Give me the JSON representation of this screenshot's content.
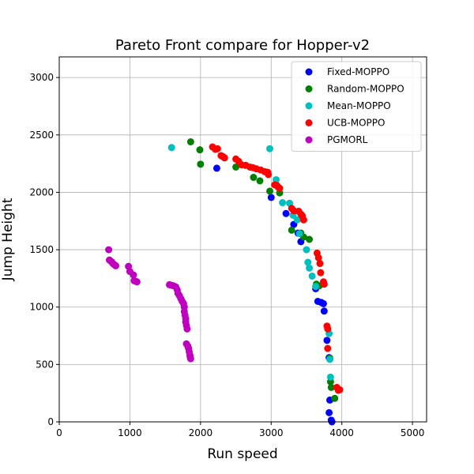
{
  "chart_data": {
    "type": "scatter",
    "title": "Pareto Front compare for Hopper-v2",
    "xlabel": "Run speed",
    "ylabel": "Jump Height",
    "xlim": [
      0,
      5200
    ],
    "ylim": [
      0,
      3180
    ],
    "xticks": [
      0,
      1000,
      2000,
      3000,
      4000,
      5000
    ],
    "yticks": [
      0,
      500,
      1000,
      1500,
      2000,
      2500,
      3000
    ],
    "grid": true,
    "legend_position": "top-right",
    "series": [
      {
        "name": "Fixed-MOPPO",
        "color": "#0000ff",
        "points": [
          [
            2230,
            2210
          ],
          [
            3000,
            1955
          ],
          [
            3210,
            1815
          ],
          [
            3320,
            1720
          ],
          [
            3380,
            1645
          ],
          [
            3420,
            1570
          ],
          [
            3630,
            1160
          ],
          [
            3660,
            1050
          ],
          [
            3710,
            1040
          ],
          [
            3740,
            1030
          ],
          [
            3750,
            965
          ],
          [
            3790,
            710
          ],
          [
            3820,
            560
          ],
          [
            3830,
            190
          ],
          [
            3820,
            80
          ],
          [
            3850,
            15
          ],
          [
            3860,
            0
          ]
        ]
      },
      {
        "name": "Random-MOPPO",
        "color": "#008000",
        "points": [
          [
            1860,
            2440
          ],
          [
            1990,
            2370
          ],
          [
            2000,
            2245
          ],
          [
            2500,
            2220
          ],
          [
            2750,
            2130
          ],
          [
            2840,
            2100
          ],
          [
            2980,
            2010
          ],
          [
            3120,
            1995
          ],
          [
            3290,
            1670
          ],
          [
            3420,
            1645
          ],
          [
            3460,
            1610
          ],
          [
            3540,
            1590
          ],
          [
            3640,
            1200
          ],
          [
            3680,
            1185
          ],
          [
            3830,
            555
          ],
          [
            3840,
            350
          ],
          [
            3850,
            300
          ],
          [
            3900,
            205
          ]
        ]
      },
      {
        "name": "Mean-MOPPO",
        "color": "#00bfbf",
        "points": [
          [
            1590,
            2390
          ],
          [
            2980,
            2380
          ],
          [
            3070,
            2110
          ],
          [
            3160,
            1910
          ],
          [
            3260,
            1905
          ],
          [
            3310,
            1800
          ],
          [
            3370,
            1760
          ],
          [
            3400,
            1640
          ],
          [
            3500,
            1500
          ],
          [
            3520,
            1390
          ],
          [
            3540,
            1340
          ],
          [
            3580,
            1270
          ],
          [
            3630,
            1180
          ],
          [
            3820,
            770
          ],
          [
            3830,
            545
          ],
          [
            3840,
            390
          ]
        ]
      },
      {
        "name": "UCB-MOPPO",
        "color": "#ff0000",
        "points": [
          [
            2170,
            2395
          ],
          [
            2210,
            2375
          ],
          [
            2240,
            2380
          ],
          [
            2290,
            2320
          ],
          [
            2320,
            2310
          ],
          [
            2340,
            2300
          ],
          [
            2500,
            2290
          ],
          [
            2540,
            2270
          ],
          [
            2580,
            2240
          ],
          [
            2640,
            2235
          ],
          [
            2700,
            2220
          ],
          [
            2740,
            2215
          ],
          [
            2790,
            2205
          ],
          [
            2850,
            2195
          ],
          [
            2910,
            2180
          ],
          [
            2950,
            2175
          ],
          [
            2960,
            2155
          ],
          [
            3050,
            2065
          ],
          [
            3080,
            2060
          ],
          [
            3100,
            2045
          ],
          [
            3120,
            2035
          ],
          [
            3290,
            1860
          ],
          [
            3320,
            1840
          ],
          [
            3390,
            1835
          ],
          [
            3420,
            1810
          ],
          [
            3440,
            1795
          ],
          [
            3460,
            1760
          ],
          [
            3650,
            1470
          ],
          [
            3670,
            1430
          ],
          [
            3690,
            1380
          ],
          [
            3700,
            1300
          ],
          [
            3740,
            1220
          ],
          [
            3750,
            1200
          ],
          [
            3790,
            835
          ],
          [
            3800,
            810
          ],
          [
            3800,
            640
          ],
          [
            3930,
            300
          ],
          [
            3950,
            275
          ],
          [
            3970,
            280
          ]
        ]
      },
      {
        "name": "PGMORL",
        "color": "#bf00bf",
        "points": [
          [
            700,
            1500
          ],
          [
            710,
            1410
          ],
          [
            720,
            1405
          ],
          [
            740,
            1395
          ],
          [
            760,
            1380
          ],
          [
            780,
            1370
          ],
          [
            800,
            1360
          ],
          [
            980,
            1355
          ],
          [
            1000,
            1310
          ],
          [
            1050,
            1280
          ],
          [
            1060,
            1230
          ],
          [
            1080,
            1225
          ],
          [
            1100,
            1220
          ],
          [
            1560,
            1195
          ],
          [
            1590,
            1190
          ],
          [
            1620,
            1185
          ],
          [
            1650,
            1175
          ],
          [
            1670,
            1150
          ],
          [
            1680,
            1120
          ],
          [
            1700,
            1100
          ],
          [
            1720,
            1075
          ],
          [
            1740,
            1050
          ],
          [
            1760,
            1030
          ],
          [
            1770,
            1000
          ],
          [
            1770,
            960
          ],
          [
            1780,
            930
          ],
          [
            1790,
            900
          ],
          [
            1790,
            870
          ],
          [
            1800,
            840
          ],
          [
            1810,
            810
          ],
          [
            1800,
            680
          ],
          [
            1820,
            660
          ],
          [
            1830,
            640
          ],
          [
            1840,
            610
          ],
          [
            1850,
            580
          ],
          [
            1855,
            560
          ],
          [
            1860,
            550
          ]
        ]
      }
    ]
  }
}
